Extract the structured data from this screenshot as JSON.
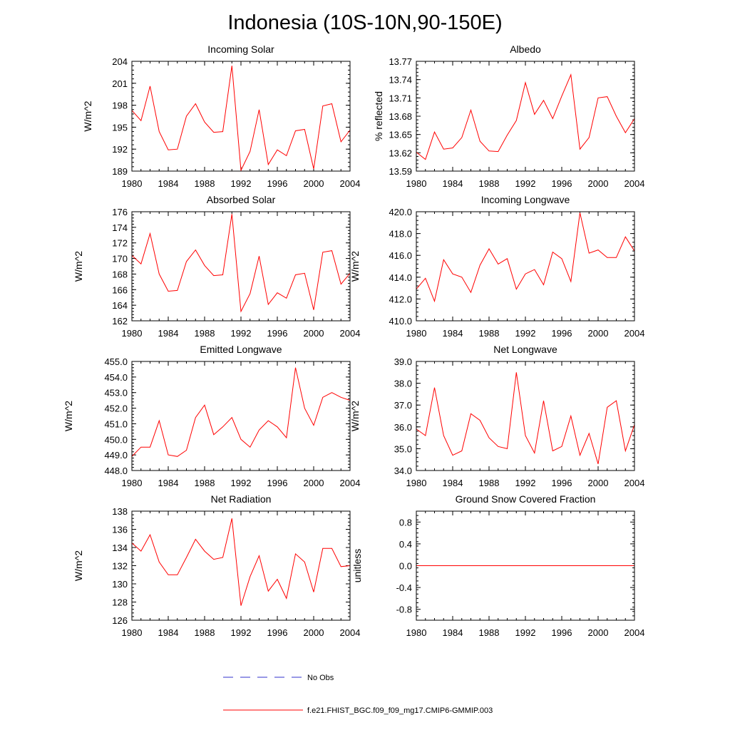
{
  "figure": {
    "title": "Indonesia (10S-10N,90-150E)",
    "colors": {
      "model": "#ff0000",
      "obs": "#3333cc",
      "axis": "#000000"
    },
    "legend": [
      {
        "label": "No Obs",
        "style": "dashed",
        "color": "#3333cc"
      },
      {
        "label": "f.e21.FHIST_BGC.f09_f09_mg17.CMIP6-GMMIP.003",
        "style": "solid",
        "color": "#ff0000"
      }
    ]
  },
  "chart_data": [
    {
      "type": "line",
      "title": "Incoming Solar",
      "ylabel": "W/m^2",
      "xlabel": "",
      "xlim": [
        1980,
        2004
      ],
      "ylim": [
        189,
        204
      ],
      "yticks": [
        189,
        192,
        195,
        198,
        201,
        204
      ],
      "ytick_labels": [
        "189",
        "192",
        "195",
        "198",
        "201",
        "204"
      ],
      "xticks": [
        1980,
        1984,
        1988,
        1992,
        1996,
        2000,
        2004
      ],
      "xtick_labels": [
        "1980",
        "1984",
        "1988",
        "1992",
        "1996",
        "2000",
        "2004"
      ],
      "x": [
        1980,
        1981,
        1982,
        1983,
        1984,
        1985,
        1986,
        1987,
        1988,
        1989,
        1990,
        1991,
        1992,
        1993,
        1994,
        1995,
        1996,
        1997,
        1998,
        1999,
        2000,
        2001,
        2002,
        2003,
        2004
      ],
      "series": [
        {
          "name": "f.e21.FHIST_BGC.f09_f09_mg17.CMIP6-GMMIP.003",
          "values": [
            197.3,
            195.9,
            200.6,
            194.4,
            191.9,
            192.0,
            196.5,
            198.2,
            195.7,
            194.3,
            194.4,
            203.4,
            189.1,
            191.7,
            197.4,
            189.9,
            191.9,
            191.1,
            194.5,
            194.7,
            189.3,
            197.9,
            198.2,
            193.0,
            194.6
          ]
        }
      ]
    },
    {
      "type": "line",
      "title": "Albedo",
      "ylabel": "% reflected",
      "xlabel": "",
      "xlim": [
        1980,
        2004
      ],
      "ylim": [
        13.59,
        13.77
      ],
      "yticks": [
        13.59,
        13.62,
        13.65,
        13.68,
        13.71,
        13.74,
        13.77
      ],
      "ytick_labels": [
        "13.59",
        "13.62",
        "13.65",
        "13.68",
        "13.71",
        "13.74",
        "13.77"
      ],
      "xticks": [
        1980,
        1984,
        1988,
        1992,
        1996,
        2000,
        2004
      ],
      "xtick_labels": [
        "1980",
        "1984",
        "1988",
        "1992",
        "1996",
        "2000",
        "2004"
      ],
      "x": [
        1980,
        1981,
        1982,
        1983,
        1984,
        1985,
        1986,
        1987,
        1988,
        1989,
        1990,
        1991,
        1992,
        1993,
        1994,
        1995,
        1996,
        1997,
        1998,
        1999,
        2000,
        2001,
        2002,
        2003,
        2004
      ],
      "series": [
        {
          "name": "f.e21.FHIST_BGC.f09_f09_mg17.CMIP6-GMMIP.003",
          "values": [
            13.621,
            13.609,
            13.654,
            13.626,
            13.628,
            13.645,
            13.69,
            13.639,
            13.623,
            13.622,
            13.649,
            13.673,
            13.735,
            13.683,
            13.706,
            13.676,
            13.713,
            13.748,
            13.626,
            13.645,
            13.71,
            13.712,
            13.68,
            13.653,
            13.676
          ]
        }
      ]
    },
    {
      "type": "line",
      "title": "Absorbed Solar",
      "ylabel": "W/m^2",
      "xlabel": "",
      "xlim": [
        1980,
        2004
      ],
      "ylim": [
        162,
        176
      ],
      "yticks": [
        162,
        164,
        166,
        168,
        170,
        172,
        174,
        176
      ],
      "ytick_labels": [
        "162",
        "164",
        "166",
        "168",
        "170",
        "172",
        "174",
        "176"
      ],
      "xticks": [
        1980,
        1984,
        1988,
        1992,
        1996,
        2000,
        2004
      ],
      "xtick_labels": [
        "1980",
        "1984",
        "1988",
        "1992",
        "1996",
        "2000",
        "2004"
      ],
      "x": [
        1980,
        1981,
        1982,
        1983,
        1984,
        1985,
        1986,
        1987,
        1988,
        1989,
        1990,
        1991,
        1992,
        1993,
        1994,
        1995,
        1996,
        1997,
        1998,
        1999,
        2000,
        2001,
        2002,
        2003,
        2004
      ],
      "series": [
        {
          "name": "f.e21.FHIST_BGC.f09_f09_mg17.CMIP6-GMMIP.003",
          "values": [
            170.4,
            169.3,
            173.2,
            168.0,
            165.8,
            165.9,
            169.6,
            171.1,
            169.1,
            167.8,
            167.9,
            175.7,
            163.2,
            165.5,
            170.3,
            164.1,
            165.6,
            164.9,
            167.9,
            168.1,
            163.4,
            170.8,
            171.0,
            166.7,
            168.1
          ]
        }
      ]
    },
    {
      "type": "line",
      "title": "Incoming Longwave",
      "ylabel": "W/m^2",
      "xlabel": "",
      "xlim": [
        1980,
        2004
      ],
      "ylim": [
        410.0,
        420.0
      ],
      "yticks": [
        410,
        412,
        414,
        416,
        418,
        420
      ],
      "ytick_labels": [
        "410.0",
        "412.0",
        "414.0",
        "416.0",
        "418.0",
        "420.0"
      ],
      "xticks": [
        1980,
        1984,
        1988,
        1992,
        1996,
        2000,
        2004
      ],
      "xtick_labels": [
        "1980",
        "1984",
        "1988",
        "1992",
        "1996",
        "2000",
        "2004"
      ],
      "x": [
        1980,
        1981,
        1982,
        1983,
        1984,
        1985,
        1986,
        1987,
        1988,
        1989,
        1990,
        1991,
        1992,
        1993,
        1994,
        1995,
        1996,
        1997,
        1998,
        1999,
        2000,
        2001,
        2002,
        2003,
        2004
      ],
      "series": [
        {
          "name": "f.e21.FHIST_BGC.f09_f09_mg17.CMIP6-GMMIP.003",
          "values": [
            412.9,
            413.9,
            411.8,
            415.6,
            414.3,
            414.0,
            412.6,
            415.1,
            416.6,
            415.2,
            415.7,
            412.9,
            414.3,
            414.7,
            413.3,
            416.3,
            415.7,
            413.6,
            419.9,
            416.2,
            416.5,
            415.8,
            415.8,
            417.7,
            416.4
          ]
        }
      ]
    },
    {
      "type": "line",
      "title": "Emitted Longwave",
      "ylabel": "W/m^2",
      "xlabel": "",
      "xlim": [
        1980,
        2004
      ],
      "ylim": [
        448.0,
        455.0
      ],
      "yticks": [
        448,
        449,
        450,
        451,
        452,
        453,
        454,
        455
      ],
      "ytick_labels": [
        "448.0",
        "449.0",
        "450.0",
        "451.0",
        "452.0",
        "453.0",
        "454.0",
        "455.0"
      ],
      "xticks": [
        1980,
        1984,
        1988,
        1992,
        1996,
        2000,
        2004
      ],
      "xtick_labels": [
        "1980",
        "1984",
        "1988",
        "1992",
        "1996",
        "2000",
        "2004"
      ],
      "x": [
        1980,
        1981,
        1982,
        1983,
        1984,
        1985,
        1986,
        1987,
        1988,
        1989,
        1990,
        1991,
        1992,
        1993,
        1994,
        1995,
        1996,
        1997,
        1998,
        1999,
        2000,
        2001,
        2002,
        2003,
        2004
      ],
      "series": [
        {
          "name": "f.e21.FHIST_BGC.f09_f09_mg17.CMIP6-GMMIP.003",
          "values": [
            448.9,
            449.5,
            449.5,
            451.2,
            449.0,
            448.9,
            449.3,
            451.4,
            452.2,
            450.3,
            450.8,
            451.4,
            450.0,
            449.5,
            450.6,
            451.2,
            450.8,
            450.1,
            454.6,
            452.0,
            450.9,
            452.7,
            453.0,
            452.7,
            452.5
          ]
        }
      ]
    },
    {
      "type": "line",
      "title": "Net Longwave",
      "ylabel": "W/m^2",
      "xlabel": "",
      "xlim": [
        1980,
        2004
      ],
      "ylim": [
        34.0,
        39.0
      ],
      "yticks": [
        34,
        35,
        36,
        37,
        38,
        39
      ],
      "ytick_labels": [
        "34.0",
        "35.0",
        "36.0",
        "37.0",
        "38.0",
        "39.0"
      ],
      "xticks": [
        1980,
        1984,
        1988,
        1992,
        1996,
        2000,
        2004
      ],
      "xtick_labels": [
        "1980",
        "1984",
        "1988",
        "1992",
        "1996",
        "2000",
        "2004"
      ],
      "x": [
        1980,
        1981,
        1982,
        1983,
        1984,
        1985,
        1986,
        1987,
        1988,
        1989,
        1990,
        1991,
        1992,
        1993,
        1994,
        1995,
        1996,
        1997,
        1998,
        1999,
        2000,
        2001,
        2002,
        2003,
        2004
      ],
      "series": [
        {
          "name": "f.e21.FHIST_BGC.f09_f09_mg17.CMIP6-GMMIP.003",
          "values": [
            35.9,
            35.6,
            37.8,
            35.6,
            34.7,
            34.9,
            36.6,
            36.3,
            35.5,
            35.1,
            35.0,
            38.5,
            35.6,
            34.8,
            37.2,
            34.9,
            35.1,
            36.5,
            34.7,
            35.7,
            34.3,
            36.9,
            37.2,
            34.9,
            36.1
          ]
        }
      ]
    },
    {
      "type": "line",
      "title": "Net Radiation",
      "ylabel": "W/m^2",
      "xlabel": "",
      "xlim": [
        1980,
        2004
      ],
      "ylim": [
        126,
        138
      ],
      "yticks": [
        126,
        128,
        130,
        132,
        134,
        136,
        138
      ],
      "ytick_labels": [
        "126",
        "128",
        "130",
        "132",
        "134",
        "136",
        "138"
      ],
      "xticks": [
        1980,
        1984,
        1988,
        1992,
        1996,
        2000,
        2004
      ],
      "xtick_labels": [
        "1980",
        "1984",
        "1988",
        "1992",
        "1996",
        "2000",
        "2004"
      ],
      "x": [
        1980,
        1981,
        1982,
        1983,
        1984,
        1985,
        1986,
        1987,
        1988,
        1989,
        1990,
        1991,
        1992,
        1993,
        1994,
        1995,
        1996,
        1997,
        1998,
        1999,
        2000,
        2001,
        2002,
        2003,
        2004
      ],
      "series": [
        {
          "name": "f.e21.FHIST_BGC.f09_f09_mg17.CMIP6-GMMIP.003",
          "values": [
            134.5,
            133.6,
            135.4,
            132.4,
            131.0,
            131.0,
            132.9,
            134.9,
            133.6,
            132.7,
            132.9,
            137.2,
            127.6,
            130.8,
            133.1,
            129.2,
            130.5,
            128.4,
            133.3,
            132.4,
            129.1,
            133.9,
            133.9,
            131.9,
            132.0
          ]
        }
      ]
    },
    {
      "type": "line",
      "title": "Ground Snow Covered Fraction",
      "ylabel": "unitless",
      "xlabel": "",
      "xlim": [
        1980,
        2004
      ],
      "ylim": [
        -1.0,
        1.0
      ],
      "yticks": [
        -0.8,
        -0.4,
        0.0,
        0.4,
        0.8
      ],
      "ytick_labels": [
        "-0.8",
        "-0.4",
        "0.0",
        "0.4",
        "0.8"
      ],
      "xticks": [
        1980,
        1984,
        1988,
        1992,
        1996,
        2000,
        2004
      ],
      "xtick_labels": [
        "1980",
        "1984",
        "1988",
        "1992",
        "1996",
        "2000",
        "2004"
      ],
      "x": [
        1980,
        1981,
        1982,
        1983,
        1984,
        1985,
        1986,
        1987,
        1988,
        1989,
        1990,
        1991,
        1992,
        1993,
        1994,
        1995,
        1996,
        1997,
        1998,
        1999,
        2000,
        2001,
        2002,
        2003,
        2004
      ],
      "series": [
        {
          "name": "f.e21.FHIST_BGC.f09_f09_mg17.CMIP6-GMMIP.003",
          "values": [
            0,
            0,
            0,
            0,
            0,
            0,
            0,
            0,
            0,
            0,
            0,
            0,
            0,
            0,
            0,
            0,
            0,
            0,
            0,
            0,
            0,
            0,
            0,
            0,
            0
          ]
        }
      ]
    }
  ]
}
